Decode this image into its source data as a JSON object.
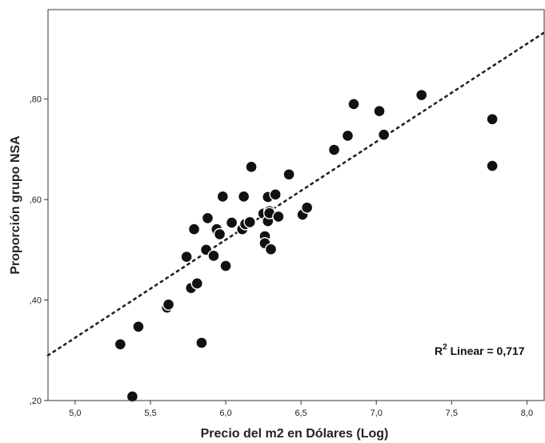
{
  "chart_data": {
    "type": "scatter",
    "title": "",
    "xlabel": "Precio del m2 en Dólares (Log)",
    "ylabel": "Proporción grupo NSA",
    "xlim": [
      4.82,
      8.12
    ],
    "ylim": [
      0.2,
      0.978
    ],
    "x_ticks": [
      5.0,
      5.5,
      6.0,
      6.5,
      7.0,
      7.5,
      8.0
    ],
    "x_tick_labels": [
      "5,0",
      "5,5",
      "6,0",
      "6,5",
      "7,0",
      "7,5",
      "8,0"
    ],
    "y_ticks": [
      0.2,
      0.4,
      0.6,
      0.8
    ],
    "y_tick_labels": [
      ",20",
      ",40",
      ",60",
      ",80"
    ],
    "grid": false,
    "legend": "none",
    "annotation": {
      "r2_prefix": "R",
      "r2_sup": "2",
      "r2_text": " Linear = 0,717"
    },
    "fit_line": {
      "style": "dotted",
      "intercept": -0.65,
      "slope": 0.195
    },
    "colors": {
      "points": "#111111",
      "point_edge": "#ffffff",
      "fit_line": "#222222",
      "frame": "#333333"
    },
    "series": [
      {
        "x": [
          5.3,
          5.38,
          5.42,
          5.61,
          5.62,
          5.74,
          5.77,
          5.79,
          5.81,
          5.84,
          5.87,
          5.88,
          5.92,
          5.94,
          5.96,
          5.98,
          6.0,
          6.04,
          6.11,
          6.12,
          6.13,
          6.16,
          6.17,
          6.25,
          6.26,
          6.26,
          6.28,
          6.28,
          6.29,
          6.29,
          6.3,
          6.33,
          6.35,
          6.42,
          6.51,
          6.54,
          6.72,
          6.81,
          6.85,
          7.02,
          7.05,
          7.3,
          7.77,
          7.77
        ],
        "y": [
          0.312,
          0.208,
          0.347,
          0.385,
          0.391,
          0.486,
          0.424,
          0.541,
          0.433,
          0.315,
          0.5,
          0.563,
          0.488,
          0.541,
          0.531,
          0.606,
          0.468,
          0.554,
          0.541,
          0.606,
          0.551,
          0.555,
          0.665,
          0.572,
          0.527,
          0.513,
          0.605,
          0.557,
          0.577,
          0.573,
          0.501,
          0.61,
          0.566,
          0.65,
          0.57,
          0.584,
          0.699,
          0.727,
          0.79,
          0.776,
          0.729,
          0.808,
          0.76,
          0.667
        ]
      }
    ]
  }
}
